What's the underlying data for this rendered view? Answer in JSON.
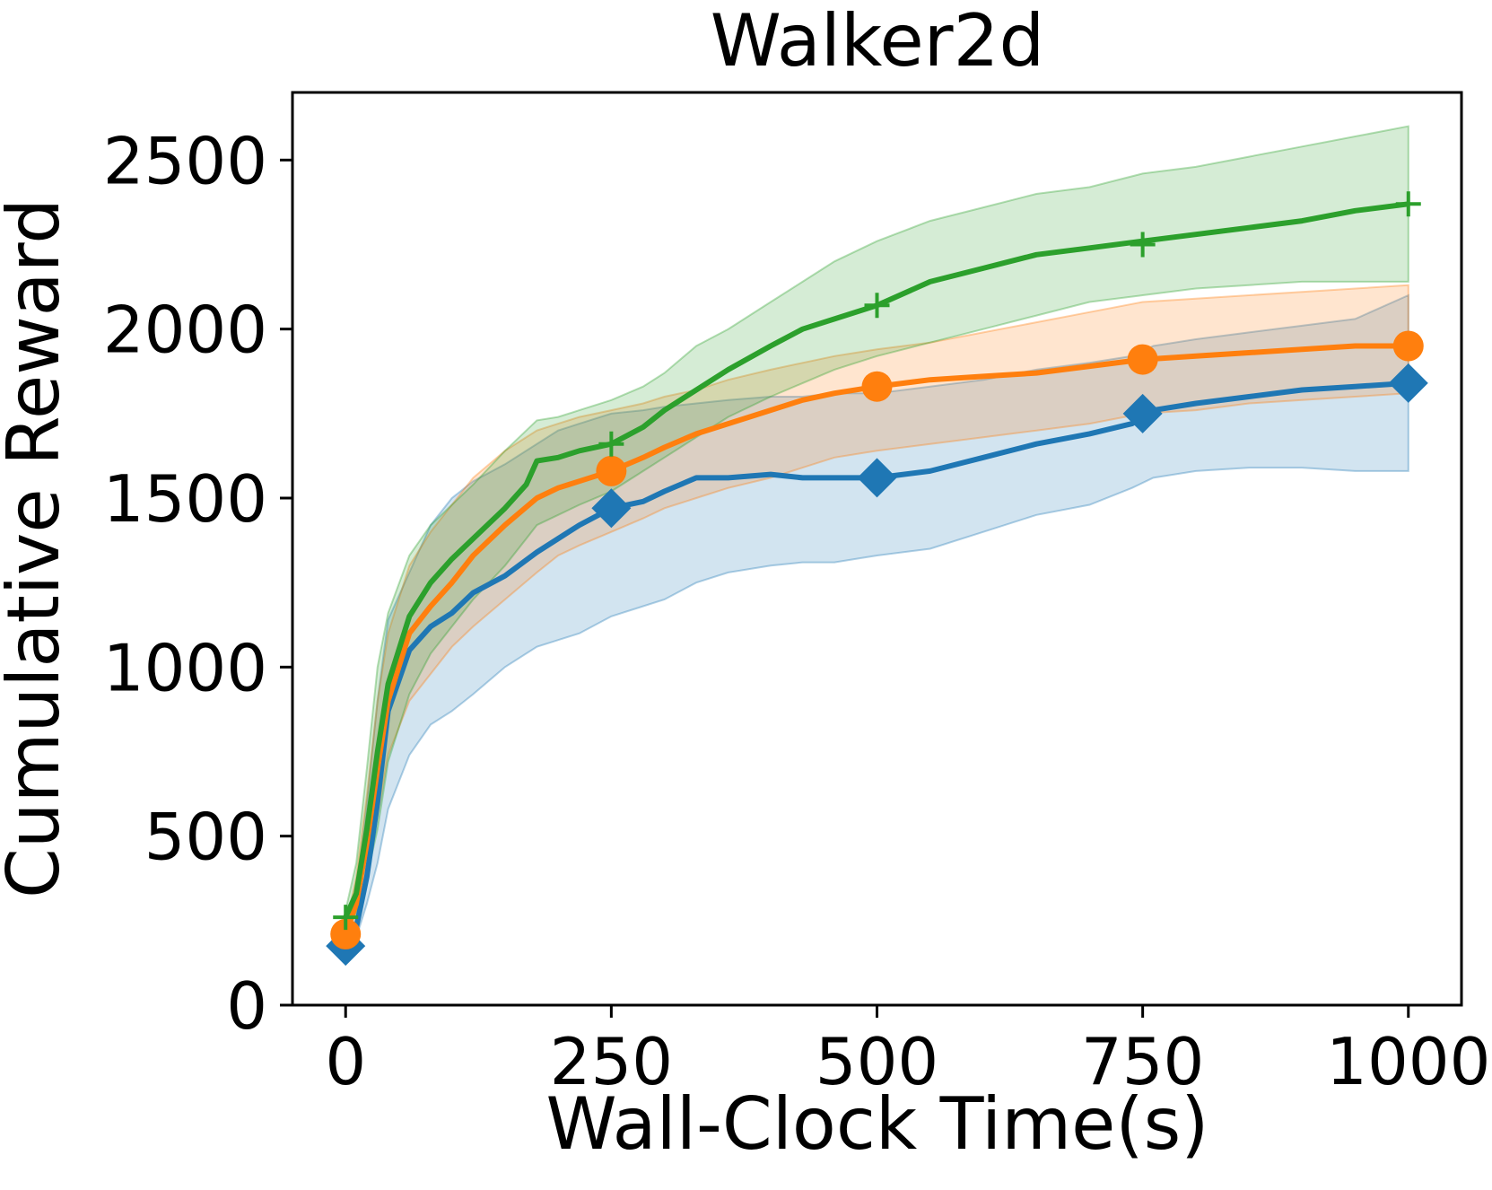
{
  "chart_data": {
    "type": "line",
    "title": "Walker2d",
    "xlabel": "Wall-Clock Time(s)",
    "ylabel": "Cumulative Reward",
    "xlim": [
      -50,
      1050
    ],
    "ylim": [
      0,
      2700
    ],
    "xticks": [
      0,
      250,
      500,
      750,
      1000
    ],
    "yticks": [
      0,
      500,
      1000,
      1500,
      2000,
      2500
    ],
    "xtick_labels": [
      "0",
      "250",
      "500",
      "750",
      "1000"
    ],
    "ytick_labels": [
      "0",
      "500",
      "1000",
      "1500",
      "2000",
      "2500"
    ],
    "grid": false,
    "legend": "none",
    "series": [
      {
        "color": "#1f77b4",
        "marker": "diamond",
        "marker_x": [
          0,
          250,
          500,
          750,
          1000
        ],
        "marker_y": [
          175,
          1470,
          1560,
          1750,
          1840
        ],
        "x": [
          0,
          10,
          20,
          30,
          40,
          60,
          80,
          100,
          120,
          150,
          180,
          200,
          220,
          250,
          280,
          300,
          330,
          360,
          400,
          430,
          460,
          500,
          550,
          600,
          650,
          700,
          740,
          760,
          800,
          850,
          900,
          950,
          1000
        ],
        "y": [
          175,
          230,
          380,
          600,
          870,
          1050,
          1120,
          1160,
          1220,
          1270,
          1340,
          1380,
          1420,
          1470,
          1490,
          1520,
          1560,
          1560,
          1570,
          1560,
          1560,
          1560,
          1580,
          1620,
          1660,
          1690,
          1720,
          1760,
          1780,
          1800,
          1820,
          1830,
          1840
        ],
        "upper": [
          190,
          320,
          600,
          900,
          1140,
          1280,
          1420,
          1500,
          1550,
          1600,
          1660,
          1700,
          1720,
          1750,
          1760,
          1770,
          1780,
          1790,
          1800,
          1800,
          1810,
          1810,
          1830,
          1850,
          1880,
          1900,
          1920,
          1950,
          1970,
          1990,
          2010,
          2030,
          2100
        ],
        "lower": [
          160,
          200,
          300,
          420,
          580,
          740,
          830,
          870,
          920,
          1000,
          1060,
          1080,
          1100,
          1150,
          1180,
          1200,
          1250,
          1280,
          1300,
          1310,
          1310,
          1330,
          1350,
          1400,
          1450,
          1480,
          1530,
          1560,
          1580,
          1590,
          1590,
          1580,
          1580
        ]
      },
      {
        "color": "#ff7f0e",
        "marker": "circle",
        "marker_x": [
          0,
          250,
          500,
          750,
          1000
        ],
        "marker_y": [
          210,
          1580,
          1830,
          1910,
          1950
        ],
        "x": [
          0,
          10,
          20,
          30,
          40,
          60,
          80,
          100,
          120,
          150,
          180,
          200,
          220,
          250,
          280,
          300,
          330,
          360,
          400,
          430,
          460,
          500,
          550,
          600,
          650,
          700,
          750,
          800,
          850,
          900,
          950,
          1000
        ],
        "y": [
          210,
          300,
          480,
          700,
          900,
          1100,
          1180,
          1250,
          1330,
          1420,
          1500,
          1530,
          1550,
          1580,
          1620,
          1650,
          1690,
          1720,
          1760,
          1790,
          1810,
          1830,
          1850,
          1860,
          1870,
          1890,
          1910,
          1920,
          1930,
          1940,
          1950,
          1950
        ],
        "upper": [
          230,
          380,
          620,
          900,
          1100,
          1300,
          1400,
          1480,
          1560,
          1640,
          1700,
          1720,
          1740,
          1760,
          1780,
          1800,
          1820,
          1850,
          1880,
          1900,
          1920,
          1940,
          1960,
          1990,
          2020,
          2050,
          2080,
          2090,
          2100,
          2110,
          2120,
          2130
        ],
        "lower": [
          190,
          250,
          380,
          560,
          740,
          900,
          980,
          1060,
          1120,
          1200,
          1280,
          1330,
          1360,
          1400,
          1440,
          1470,
          1500,
          1530,
          1560,
          1590,
          1620,
          1640,
          1660,
          1680,
          1700,
          1720,
          1750,
          1760,
          1780,
          1790,
          1800,
          1810
        ]
      },
      {
        "color": "#2ca02c",
        "marker": "plus",
        "marker_x": [
          0,
          250,
          500,
          750,
          1000
        ],
        "marker_y": [
          260,
          1660,
          2070,
          2250,
          2370
        ],
        "x": [
          0,
          10,
          20,
          30,
          40,
          60,
          80,
          100,
          120,
          150,
          170,
          180,
          200,
          220,
          250,
          280,
          300,
          330,
          360,
          400,
          430,
          460,
          500,
          550,
          600,
          650,
          700,
          750,
          800,
          850,
          900,
          950,
          1000
        ],
        "y": [
          260,
          330,
          520,
          750,
          950,
          1150,
          1250,
          1320,
          1380,
          1470,
          1540,
          1610,
          1620,
          1640,
          1660,
          1710,
          1760,
          1820,
          1880,
          1950,
          2000,
          2030,
          2070,
          2140,
          2180,
          2220,
          2240,
          2260,
          2280,
          2300,
          2320,
          2350,
          2370
        ],
        "upper": [
          280,
          420,
          700,
          1000,
          1160,
          1330,
          1420,
          1480,
          1540,
          1640,
          1700,
          1730,
          1740,
          1760,
          1790,
          1830,
          1870,
          1950,
          2000,
          2080,
          2140,
          2200,
          2260,
          2320,
          2360,
          2400,
          2420,
          2460,
          2480,
          2510,
          2540,
          2570,
          2600
        ],
        "lower": [
          240,
          270,
          380,
          520,
          720,
          920,
          1040,
          1120,
          1200,
          1300,
          1380,
          1420,
          1450,
          1480,
          1520,
          1580,
          1620,
          1680,
          1740,
          1800,
          1840,
          1880,
          1920,
          1960,
          2000,
          2040,
          2080,
          2100,
          2120,
          2130,
          2140,
          2140,
          2140
        ]
      }
    ]
  }
}
